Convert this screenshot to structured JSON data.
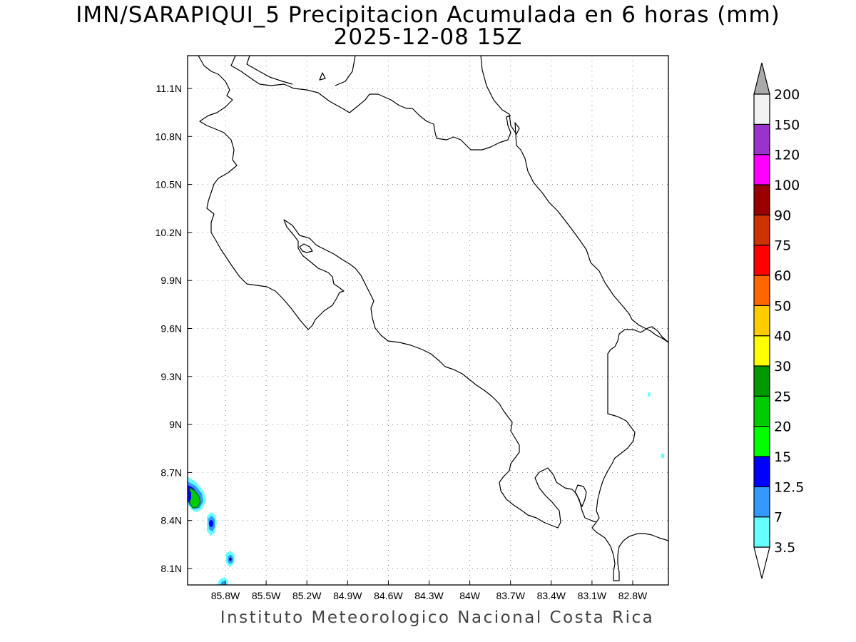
{
  "title": {
    "line1": "IMN/SARAPIQUI_5 Precipitacion Acumulada en 6 horas (mm)",
    "line2": "2025-12-08 15Z"
  },
  "credit": "Instituto Meteorologico Nacional Costa Rica",
  "map": {
    "lon_range": [
      -86.02,
      -82.48
    ],
    "lat_range": [
      8.0,
      11.3
    ],
    "lat_ticks": [
      "11.1N",
      "10.8N",
      "10.5N",
      "10.2N",
      "9.9N",
      "9.6N",
      "9.3N",
      "9N",
      "8.7N",
      "8.4N",
      "8.1N"
    ],
    "lon_ticks": [
      "85.8W",
      "85.5W",
      "85.2W",
      "84.9W",
      "84.6W",
      "84.3W",
      "84W",
      "83.7W",
      "83.4W",
      "83.1W",
      "82.8W"
    ],
    "grid": "dotted",
    "coastline_color": "#000000"
  },
  "colorbar": {
    "levels": [
      "3.5",
      "7",
      "12.5",
      "15",
      "20",
      "25",
      "30",
      "40",
      "50",
      "60",
      "75",
      "90",
      "100",
      "120",
      "150",
      "200"
    ],
    "colors": [
      "#66ffff",
      "#3399ff",
      "#0000ff",
      "#00ff00",
      "#00cc00",
      "#009900",
      "#ffff00",
      "#ffcc00",
      "#ff6600",
      "#ff0000",
      "#cc3300",
      "#990000",
      "#ff00ff",
      "#9933cc",
      "#f2f2f2"
    ],
    "top_arrow_color": "#aaaaaa",
    "bottom_arrow_color": "#ffffff"
  },
  "precip_cells": [
    {
      "lon": -85.98,
      "lat": 8.56,
      "level": "12.5"
    },
    {
      "lon": -85.77,
      "lat": 8.38,
      "level": "12.5"
    },
    {
      "lon": -85.64,
      "lat": 8.16,
      "level": "7"
    },
    {
      "lon": -85.7,
      "lat": 8.01,
      "level": "3.5"
    },
    {
      "lon": -82.62,
      "lat": 9.18,
      "level": "3.5"
    },
    {
      "lon": -82.52,
      "lat": 8.8,
      "level": "3.5"
    }
  ]
}
